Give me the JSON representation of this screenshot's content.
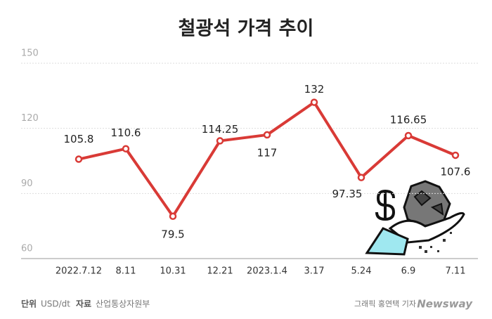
{
  "chart_data": {
    "type": "line",
    "title": "철광석 가격 추이",
    "categories": [
      "2022.7.12",
      "8.11",
      "10.31",
      "12.21",
      "2023.1.4",
      "3.17",
      "5.24",
      "6.9",
      "7.11"
    ],
    "values": [
      105.8,
      110.6,
      79.5,
      114.25,
      117,
      132,
      97.35,
      116.65,
      107.6
    ],
    "color": "#d93a36",
    "ylim": [
      60,
      150
    ],
    "yticks": [
      60,
      90,
      120,
      150
    ],
    "grid": true
  },
  "footer": {
    "unit_label": "단위",
    "unit": "USD/dt",
    "source_label": "자료",
    "source": "산업통상자원부",
    "credit": "그래픽 홍연택 기자",
    "brand": "Newsway"
  }
}
